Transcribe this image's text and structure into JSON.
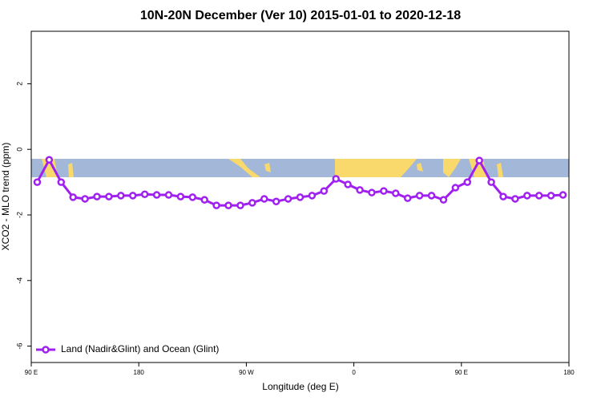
{
  "chart_data": {
    "type": "line",
    "title": "10N-20N December (Ver 10)   2015-01-01 to 2020-12-18",
    "x_label": "Longitude (deg E)",
    "y_label": "XCO2 - MLO trend (ppm)",
    "xlim": [
      90,
      540
    ],
    "ylim": [
      -6.5,
      3.6
    ],
    "xticks": [
      {
        "value": 90,
        "label": "90 E"
      },
      {
        "value": 180,
        "label": "180"
      },
      {
        "value": 270,
        "label": "90 W"
      },
      {
        "value": 360,
        "label": "0"
      },
      {
        "value": 450,
        "label": "90 E"
      },
      {
        "value": 540,
        "label": "180"
      }
    ],
    "yticks": [
      -6,
      -4,
      -2,
      0,
      2
    ],
    "legend": "bottom-left",
    "x": [
      95,
      105,
      115,
      125,
      135,
      145,
      155,
      165,
      175,
      185,
      195,
      205,
      215,
      225,
      235,
      245,
      255,
      265,
      275,
      285,
      295,
      305,
      315,
      325,
      335,
      345,
      355,
      365,
      375,
      385,
      395,
      405,
      415,
      425,
      435,
      445,
      455,
      465,
      475,
      485,
      495,
      505,
      515,
      525,
      535
    ],
    "series": [
      {
        "name": "Land (Nadir&Glint) and Ocean (Glint)",
        "color": "#a020f0",
        "values": [
          -1.0,
          -0.32,
          -1.0,
          -1.46,
          -1.51,
          -1.44,
          -1.44,
          -1.41,
          -1.41,
          -1.37,
          -1.39,
          -1.39,
          -1.44,
          -1.46,
          -1.54,
          -1.71,
          -1.71,
          -1.71,
          -1.63,
          -1.51,
          -1.59,
          -1.51,
          -1.46,
          -1.41,
          -1.27,
          -0.9,
          -1.07,
          -1.24,
          -1.32,
          -1.27,
          -1.34,
          -1.49,
          -1.41,
          -1.41,
          -1.54,
          -1.17,
          -1.0,
          -0.34,
          -1.0,
          -1.44,
          -1.51,
          -1.41,
          -1.41,
          -1.41,
          -1.39
        ]
      }
    ]
  }
}
